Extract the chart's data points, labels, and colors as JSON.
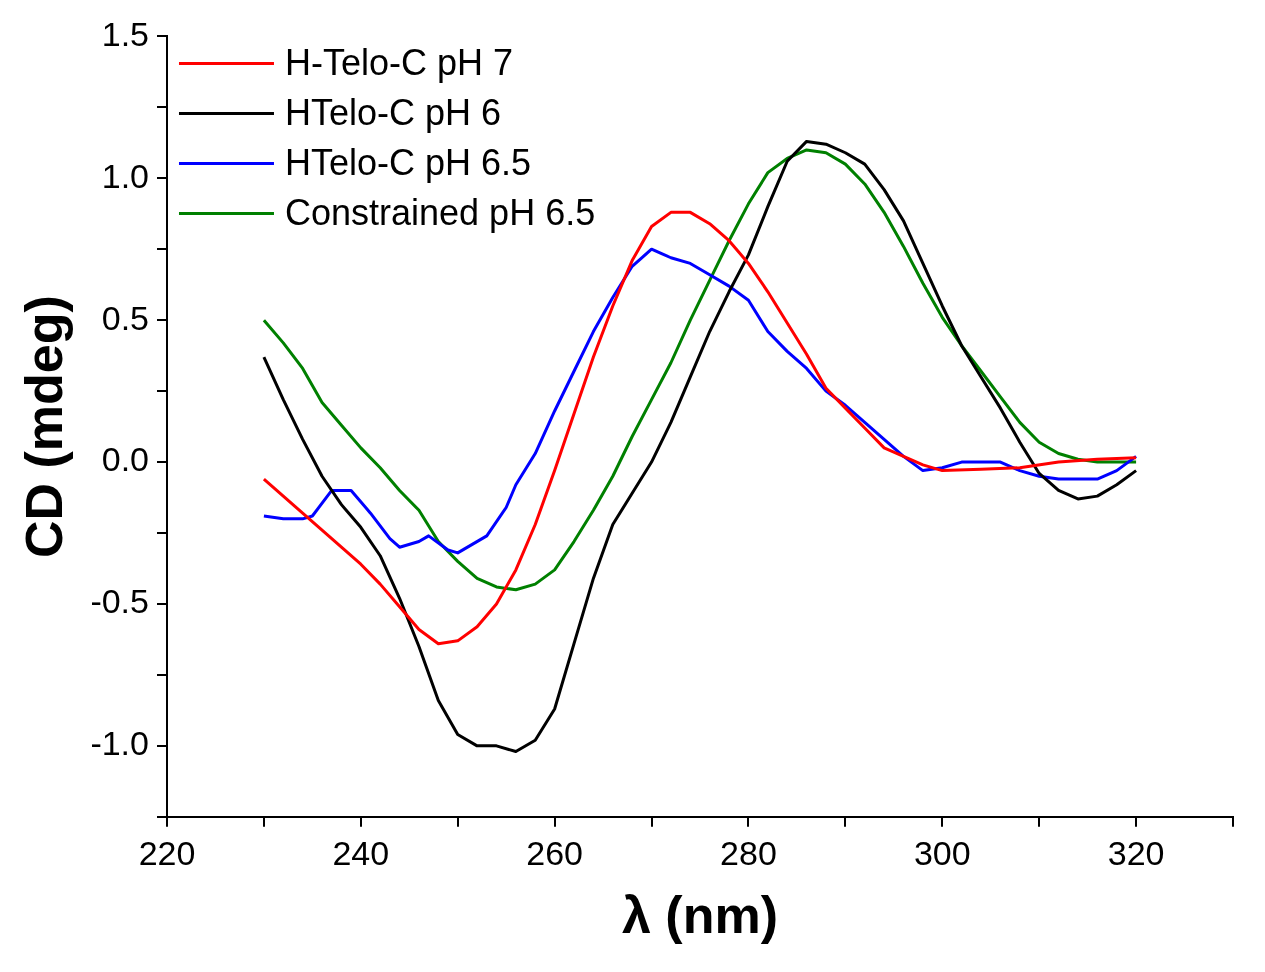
{
  "chart_data": {
    "type": "line",
    "xlabel": "λ (nm)",
    "ylabel": "CD (mdeg)",
    "xlim": [
      220,
      330
    ],
    "ylim": [
      -1.25,
      1.5
    ],
    "xticks": [
      220,
      {
        "value": 230,
        "label": null
      },
      240,
      {
        "value": 250,
        "label": null
      },
      260,
      {
        "value": 270,
        "label": null
      },
      280,
      {
        "value": 290,
        "label": null
      },
      300,
      {
        "value": 310,
        "label": null
      },
      320,
      {
        "value": 330,
        "label": null
      }
    ],
    "yticks": [
      {
        "value": -1.25,
        "label": null
      },
      {
        "value": -1.0,
        "label": "-1.0"
      },
      {
        "value": -0.75,
        "label": null
      },
      {
        "value": -0.5,
        "label": "-0.5"
      },
      {
        "value": -0.25,
        "label": null
      },
      {
        "value": 0,
        "label": "0.0"
      },
      {
        "value": 0.25,
        "label": null
      },
      {
        "value": 0.5,
        "label": "0.5"
      },
      {
        "value": 0.75,
        "label": null
      },
      {
        "value": 1.0,
        "label": "1.0"
      },
      {
        "value": 1.25,
        "label": null
      },
      {
        "value": 1.5,
        "label": "1.5"
      }
    ],
    "grid": false,
    "legend": "top left",
    "marker": "none",
    "line_style": "solid",
    "series": [
      {
        "name": "H-Telo-C pH 7",
        "color": "#ff0000",
        "x": [
          230,
          232,
          234,
          236,
          238,
          240,
          242,
          244,
          246,
          248,
          250,
          252,
          254,
          256,
          258,
          260,
          262,
          264,
          266,
          268,
          270,
          272,
          274,
          276,
          278,
          280,
          282,
          284,
          286,
          288,
          290,
          292,
          294,
          296,
          298,
          300,
          304,
          308,
          312,
          316,
          320
        ],
        "values": [
          -0.06,
          -0.12,
          -0.18,
          -0.24,
          -0.3,
          -0.36,
          -0.43,
          -0.51,
          -0.59,
          -0.64,
          -0.63,
          -0.58,
          -0.5,
          -0.38,
          -0.22,
          -0.03,
          0.17,
          0.37,
          0.55,
          0.71,
          0.83,
          0.88,
          0.88,
          0.84,
          0.78,
          0.7,
          0.6,
          0.49,
          0.38,
          0.26,
          0.19,
          0.12,
          0.05,
          0.02,
          -0.01,
          -0.03,
          -0.025,
          -0.02,
          0.0,
          0.01,
          0.015
        ]
      },
      {
        "name": "HTelo-C pH 6",
        "color": "#000000",
        "x": [
          230,
          232,
          234,
          236,
          238,
          240,
          242,
          244,
          246,
          248,
          250,
          252,
          254,
          256,
          258,
          260,
          262,
          264,
          266,
          268,
          270,
          272,
          274,
          276,
          278,
          280,
          282,
          284,
          286,
          288,
          290,
          292,
          294,
          296,
          298,
          300,
          302,
          304,
          306,
          308,
          310,
          312,
          314,
          316,
          318,
          320
        ],
        "values": [
          0.37,
          0.22,
          0.08,
          -0.05,
          -0.15,
          -0.23,
          -0.33,
          -0.48,
          -0.65,
          -0.84,
          -0.96,
          -1.0,
          -1.0,
          -1.02,
          -0.98,
          -0.87,
          -0.64,
          -0.41,
          -0.22,
          -0.11,
          0.0,
          0.14,
          0.3,
          0.46,
          0.6,
          0.73,
          0.9,
          1.06,
          1.13,
          1.12,
          1.09,
          1.05,
          0.96,
          0.85,
          0.7,
          0.55,
          0.41,
          0.3,
          0.19,
          0.07,
          -0.04,
          -0.1,
          -0.13,
          -0.12,
          -0.08,
          -0.03
        ]
      },
      {
        "name": "HTelo-C pH 6.5",
        "color": "#0000ff",
        "x": [
          230,
          232,
          234,
          235,
          237,
          239,
          241,
          243,
          244,
          246,
          247,
          249,
          250,
          253,
          255,
          256,
          258,
          260,
          262,
          264,
          266,
          268,
          270,
          272,
          274,
          276,
          278,
          280,
          282,
          284,
          286,
          288,
          290,
          292,
          294,
          296,
          298,
          300,
          302,
          304,
          306,
          308,
          310,
          312,
          314,
          316,
          318,
          320
        ],
        "values": [
          -0.19,
          -0.2,
          -0.2,
          -0.19,
          -0.1,
          -0.1,
          -0.18,
          -0.27,
          -0.3,
          -0.28,
          -0.26,
          -0.31,
          -0.32,
          -0.26,
          -0.16,
          -0.08,
          0.03,
          0.18,
          0.32,
          0.46,
          0.58,
          0.69,
          0.75,
          0.72,
          0.7,
          0.66,
          0.62,
          0.57,
          0.46,
          0.39,
          0.33,
          0.25,
          0.2,
          0.14,
          0.08,
          0.02,
          -0.03,
          -0.02,
          0.0,
          0.0,
          0.0,
          -0.03,
          -0.05,
          -0.06,
          -0.06,
          -0.06,
          -0.03,
          0.02
        ]
      },
      {
        "name": "Constrained pH 6.5",
        "color": "#008000",
        "x": [
          230,
          232,
          234,
          236,
          238,
          240,
          242,
          244,
          246,
          248,
          250,
          252,
          254,
          256,
          258,
          260,
          262,
          264,
          266,
          268,
          270,
          272,
          274,
          276,
          278,
          280,
          282,
          284,
          286,
          288,
          290,
          292,
          294,
          296,
          298,
          300,
          302,
          304,
          306,
          308,
          310,
          312,
          314,
          316,
          318,
          320
        ],
        "values": [
          0.5,
          0.42,
          0.33,
          0.21,
          0.13,
          0.05,
          -0.02,
          -0.1,
          -0.17,
          -0.28,
          -0.35,
          -0.41,
          -0.44,
          -0.45,
          -0.43,
          -0.38,
          -0.28,
          -0.17,
          -0.05,
          0.09,
          0.22,
          0.35,
          0.5,
          0.64,
          0.78,
          0.91,
          1.02,
          1.07,
          1.1,
          1.09,
          1.05,
          0.98,
          0.88,
          0.76,
          0.63,
          0.51,
          0.41,
          0.32,
          0.23,
          0.14,
          0.07,
          0.03,
          0.01,
          0.0,
          0.0,
          0.0
        ]
      }
    ]
  }
}
